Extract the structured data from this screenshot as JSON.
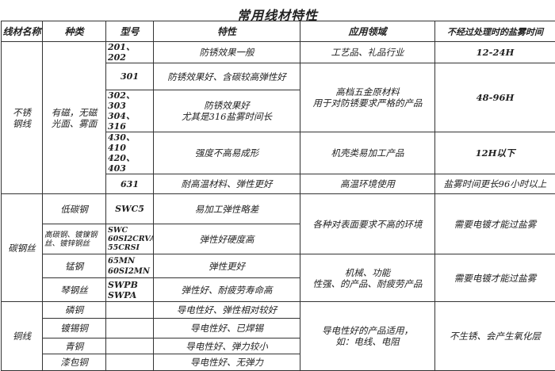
{
  "title": "常用线材特性",
  "headers": [
    "线材名称",
    "种类",
    "型号",
    "特性",
    "应用领域",
    "不经过处理时的盐雾时间"
  ],
  "stainless": {
    "name": "不锈\n钢线",
    "type": "有磁，无磁\n光面、雾面",
    "rows": [
      {
        "model": "201、202",
        "feature": "防锈效果一般",
        "application": "工艺品、礼品行业",
        "salt": "12-24H"
      },
      {
        "model": "301",
        "feature": "防锈效果好、含碳较高弹性好",
        "application": "高档五金原材料\n用于对防锈要求严格的产品",
        "salt": "48-96H"
      },
      {
        "model": "302、303\n304、316",
        "feature": "防锈效果好\n尤其是316盐雾时间长"
      },
      {
        "model": "430、410\n420、403",
        "feature": "强度不高易成形",
        "application": "机壳类易加工产品",
        "salt": "12H以下"
      },
      {
        "model": "631",
        "feature": "耐高温材料、弹性更好",
        "application": "高温环境使用",
        "salt": "盐雾时间更长96小时以上"
      }
    ]
  },
  "carbon": {
    "name": "碳钢丝",
    "rows": [
      {
        "type": "低碳钢",
        "model": "SWC5",
        "feature": "易加工弹性略差",
        "application": "各种对表面要求不高的环境",
        "salt": "需要电镀才能过盐雾"
      },
      {
        "type": "高碳钢、镀镍钢丝、镀锌钢丝",
        "model": "SWC\n60SI2CRVA、\n55CRSI",
        "feature": "弹性好硬度高"
      },
      {
        "type": "锰钢",
        "model": "65MN\n60SI2MN",
        "feature": "弹性更好",
        "application": "机械、功能\n性强、的产品、耐疲劳产品",
        "salt": "需要电镀才能过盐雾"
      },
      {
        "type": "琴钢丝",
        "model": " SWPB\n SWPA",
        "feature": "弹性好、耐疲劳寿命高"
      }
    ]
  },
  "copper": {
    "name": "铜线",
    "rows": [
      {
        "type": "磷铜",
        "model": "",
        "feature": "导电性好、弹性相对较好",
        "application": "导电性好的产品适用，\n如：电线、电阻",
        "salt": "不生锈、会产生氧化层"
      },
      {
        "type": "镀锡铜",
        "model": "",
        "feature": "导电性好、已焊锡"
      },
      {
        "type": "青铜",
        "model": "",
        "feature": "导电性好、弹力较小"
      },
      {
        "type": "漆包铜",
        "model": "",
        "feature": "导电性好、无弹力"
      }
    ]
  }
}
